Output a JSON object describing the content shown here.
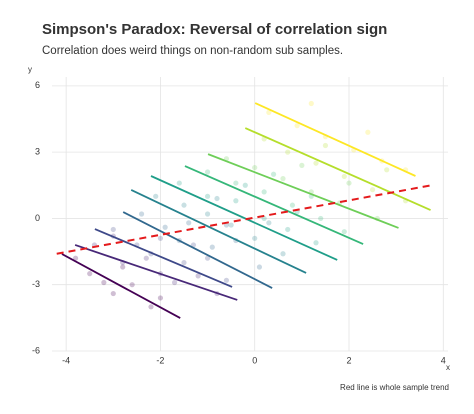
{
  "chart_data": {
    "type": "scatter",
    "title": "Simpson's Paradox: Reversal of correlation sign",
    "subtitle": "Correlation does weird things on non-random sub samples.",
    "x_label": "x",
    "y_label": "y",
    "caption": "Red line is whole sample trend",
    "xlim": [
      -4.3,
      4.1
    ],
    "ylim": [
      -6,
      6.4
    ],
    "xticks": [
      -4,
      -2,
      0,
      2,
      4
    ],
    "yticks": [
      -6,
      -3,
      0,
      3,
      6
    ],
    "grid": true,
    "groups": [
      {
        "color": "#440154",
        "x": [
          -3.5,
          -3.0,
          -2.6,
          -2.2,
          -3.8,
          -2.8,
          -2.0,
          -3.2
        ],
        "y": [
          -2.5,
          -3.4,
          -3.0,
          -4.0,
          -1.8,
          -2.2,
          -3.6,
          -2.9
        ],
        "line": {
          "x": [
            -4.09,
            -1.58
          ],
          "y": [
            -1.61,
            -4.51
          ]
        }
      },
      {
        "color": "#482878",
        "x": [
          -3.4,
          -2.8,
          -2.3,
          -1.7,
          -1.2,
          -0.8,
          -3.0,
          -2.0
        ],
        "y": [
          -1.2,
          -2.0,
          -1.8,
          -2.9,
          -2.6,
          -3.4,
          -0.8,
          -2.5
        ],
        "line": {
          "x": [
            -3.81,
            -0.37
          ],
          "y": [
            -1.2,
            -3.69
          ]
        }
      },
      {
        "color": "#3e4989",
        "x": [
          -3.0,
          -2.5,
          -2.0,
          -1.5,
          -1.0,
          -0.6,
          -2.2,
          -1.3
        ],
        "y": [
          -0.5,
          -1.2,
          -0.9,
          -2.0,
          -1.8,
          -2.8,
          -1.6,
          -1.2
        ],
        "line": {
          "x": [
            -3.39,
            -0.48
          ],
          "y": [
            -0.48,
            -3.1
          ]
        }
      },
      {
        "color": "#31688e",
        "x": [
          -2.4,
          -1.9,
          -1.4,
          -0.9,
          -0.4,
          0.1,
          -1.6,
          -0.6
        ],
        "y": [
          0.2,
          -0.4,
          -0.2,
          -1.3,
          -1.0,
          -2.2,
          -1.0,
          -0.3
        ],
        "line": {
          "x": [
            -2.79,
            0.37
          ],
          "y": [
            0.29,
            -3.15
          ]
        }
      },
      {
        "color": "#26828e",
        "x": [
          -2.1,
          -1.5,
          -1.0,
          -0.5,
          0.0,
          0.6,
          -0.8,
          0.3
        ],
        "y": [
          1.0,
          0.6,
          0.2,
          -0.3,
          -0.9,
          -1.6,
          0.9,
          -0.2
        ],
        "line": {
          "x": [
            -2.62,
            1.09
          ],
          "y": [
            1.29,
            -2.47
          ]
        }
      },
      {
        "color": "#1f9e89",
        "x": [
          -1.6,
          -1.0,
          -0.4,
          0.2,
          0.7,
          1.3,
          -0.2,
          0.9
        ],
        "y": [
          1.6,
          1.0,
          0.8,
          0.0,
          -0.5,
          -1.1,
          1.5,
          0.3
        ],
        "line": {
          "x": [
            -2.2,
            1.75
          ],
          "y": [
            1.92,
            -1.88
          ]
        }
      },
      {
        "color": "#35b779",
        "x": [
          -1.0,
          -0.4,
          0.2,
          0.8,
          1.4,
          1.9,
          0.4,
          1.2
        ],
        "y": [
          2.1,
          1.6,
          1.2,
          0.6,
          0.0,
          -0.6,
          2.0,
          1.0
        ],
        "line": {
          "x": [
            -1.48,
            2.3
          ],
          "y": [
            2.37,
            -1.16
          ]
        }
      },
      {
        "color": "#6ece58",
        "x": [
          -0.6,
          0.0,
          0.6,
          1.2,
          1.8,
          2.6,
          1.0,
          2.0
        ],
        "y": [
          2.7,
          2.3,
          1.8,
          1.2,
          0.7,
          0.0,
          2.4,
          1.6
        ],
        "line": {
          "x": [
            -0.99,
            3.05
          ],
          "y": [
            2.91,
            -0.43
          ]
        }
      },
      {
        "color": "#b5de2b",
        "x": [
          0.2,
          0.7,
          1.3,
          1.9,
          2.5,
          3.2,
          1.5,
          2.8
        ],
        "y": [
          3.6,
          3.0,
          2.5,
          1.9,
          1.3,
          0.8,
          3.3,
          2.2
        ],
        "line": {
          "x": [
            -0.2,
            3.73
          ],
          "y": [
            4.09,
            0.38
          ]
        }
      },
      {
        "color": "#fde725",
        "x": [
          0.3,
          0.9,
          1.5,
          2.1,
          2.7,
          3.2,
          1.2,
          2.4
        ],
        "y": [
          4.8,
          4.2,
          3.7,
          3.1,
          2.6,
          2.2,
          5.2,
          3.9
        ],
        "line": {
          "x": [
            0.01,
            3.41
          ],
          "y": [
            5.22,
            1.92
          ]
        }
      }
    ],
    "trend": {
      "color": "#e41a1c",
      "x": [
        -4.2,
        3.75
      ],
      "y": [
        -1.6,
        1.5
      ]
    }
  }
}
